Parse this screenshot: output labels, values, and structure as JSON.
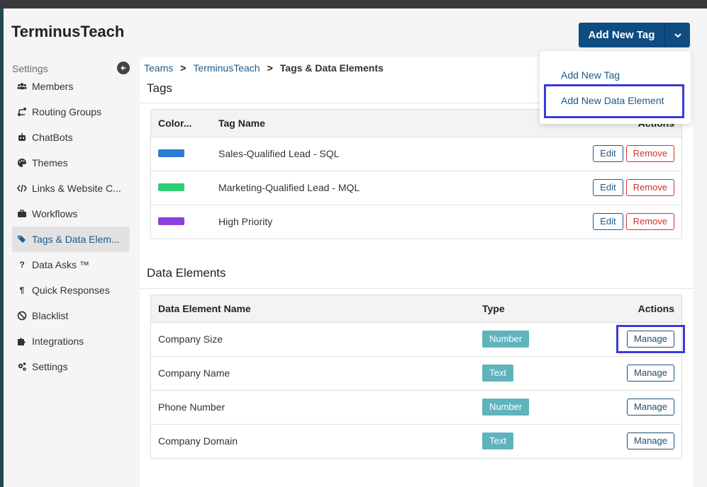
{
  "app": {
    "title": "TerminusTeach"
  },
  "header": {
    "add_button_label": "Add New Tag"
  },
  "dropdown": {
    "items": [
      "Add New Tag",
      "Add New Data Element"
    ]
  },
  "sidebar": {
    "heading": "Settings",
    "items": [
      {
        "label": "Members",
        "icon": "users-icon"
      },
      {
        "label": "Routing Groups",
        "icon": "routing-icon"
      },
      {
        "label": "ChatBots",
        "icon": "robot-icon"
      },
      {
        "label": "Themes",
        "icon": "palette-icon"
      },
      {
        "label": "Links & Website C...",
        "icon": "code-icon"
      },
      {
        "label": "Workflows",
        "icon": "briefcase-icon"
      },
      {
        "label": "Tags & Data Elem...",
        "icon": "tags-icon",
        "active": true
      },
      {
        "label": "Data Asks ™",
        "icon": "question-icon"
      },
      {
        "label": "Quick Responses",
        "icon": "paragraph-icon"
      },
      {
        "label": "Blacklist",
        "icon": "ban-icon"
      },
      {
        "label": "Integrations",
        "icon": "puzzle-icon"
      },
      {
        "label": "Settings",
        "icon": "cogs-icon"
      }
    ]
  },
  "breadcrumb": {
    "items": [
      "Teams",
      "TerminusTeach",
      "Tags & Data Elements"
    ],
    "separator": ">"
  },
  "tags": {
    "title": "Tags",
    "columns": [
      "Color...",
      "Tag Name",
      "Actions"
    ],
    "edit_label": "Edit",
    "remove_label": "Remove",
    "rows": [
      {
        "color": "#2b7cd3",
        "name": "Sales-Qualified Lead - SQL"
      },
      {
        "color": "#2fcd74",
        "name": "Marketing-Qualified Lead - MQL"
      },
      {
        "color": "#8a3fe0",
        "name": "High Priority"
      }
    ]
  },
  "data_elements": {
    "title": "Data Elements",
    "columns": [
      "Data Element Name",
      "Type",
      "Actions"
    ],
    "manage_label": "Manage",
    "rows": [
      {
        "name": "Company Size",
        "type": "Number"
      },
      {
        "name": "Company Name",
        "type": "Text"
      },
      {
        "name": "Phone Number",
        "type": "Number"
      },
      {
        "name": "Company Domain",
        "type": "Text"
      }
    ]
  },
  "colors": {
    "primary": "#0f4c81",
    "link": "#1d5a8a",
    "danger": "#d0302c",
    "badge": "#5fb3bd",
    "highlight": "#3b3bd9"
  }
}
